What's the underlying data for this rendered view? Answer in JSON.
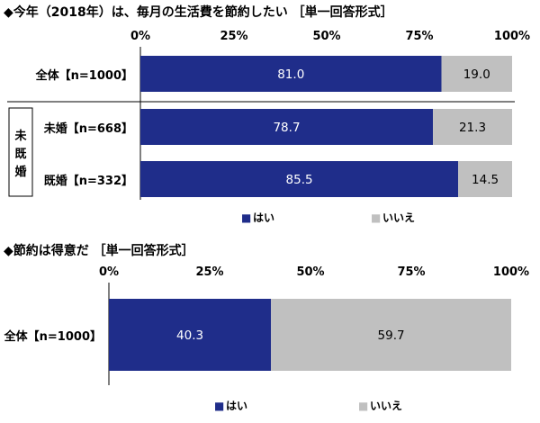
{
  "chart_data": [
    {
      "type": "bar",
      "orientation": "horizontal",
      "stacked": true,
      "title": "◆今年（2018年）は、毎月の生活費を節約したい ［単一回答形式］",
      "x_ticks": [
        "0%",
        "25%",
        "50%",
        "75%",
        "100%"
      ],
      "xlim": [
        0,
        100
      ],
      "categories": [
        "全体【n=1000】",
        "未婚【n=668】",
        "既婚【n=332】"
      ],
      "group_label": "未既婚",
      "series": [
        {
          "name": "はい",
          "color": "#1f2d8a",
          "values": [
            81.0,
            78.7,
            85.5
          ],
          "labels": [
            "81.0",
            "78.7",
            "85.5"
          ]
        },
        {
          "name": "いいえ",
          "color": "#c0c0c0",
          "values": [
            19.0,
            21.3,
            14.5
          ],
          "labels": [
            "19.0",
            "21.3",
            "14.5"
          ]
        }
      ],
      "legend": {
        "position": "bottom",
        "marker": "■"
      }
    },
    {
      "type": "bar",
      "orientation": "horizontal",
      "stacked": true,
      "title": "◆節約は得意だ ［単一回答形式］",
      "x_ticks": [
        "0%",
        "25%",
        "50%",
        "75%",
        "100%"
      ],
      "xlim": [
        0,
        100
      ],
      "categories": [
        "全体【n=1000】"
      ],
      "series": [
        {
          "name": "はい",
          "color": "#1f2d8a",
          "values": [
            40.3
          ],
          "labels": [
            "40.3"
          ]
        },
        {
          "name": "いいえ",
          "color": "#c0c0c0",
          "values": [
            59.7
          ],
          "labels": [
            "59.7"
          ]
        }
      ],
      "legend": {
        "position": "bottom",
        "marker": "■"
      }
    }
  ]
}
